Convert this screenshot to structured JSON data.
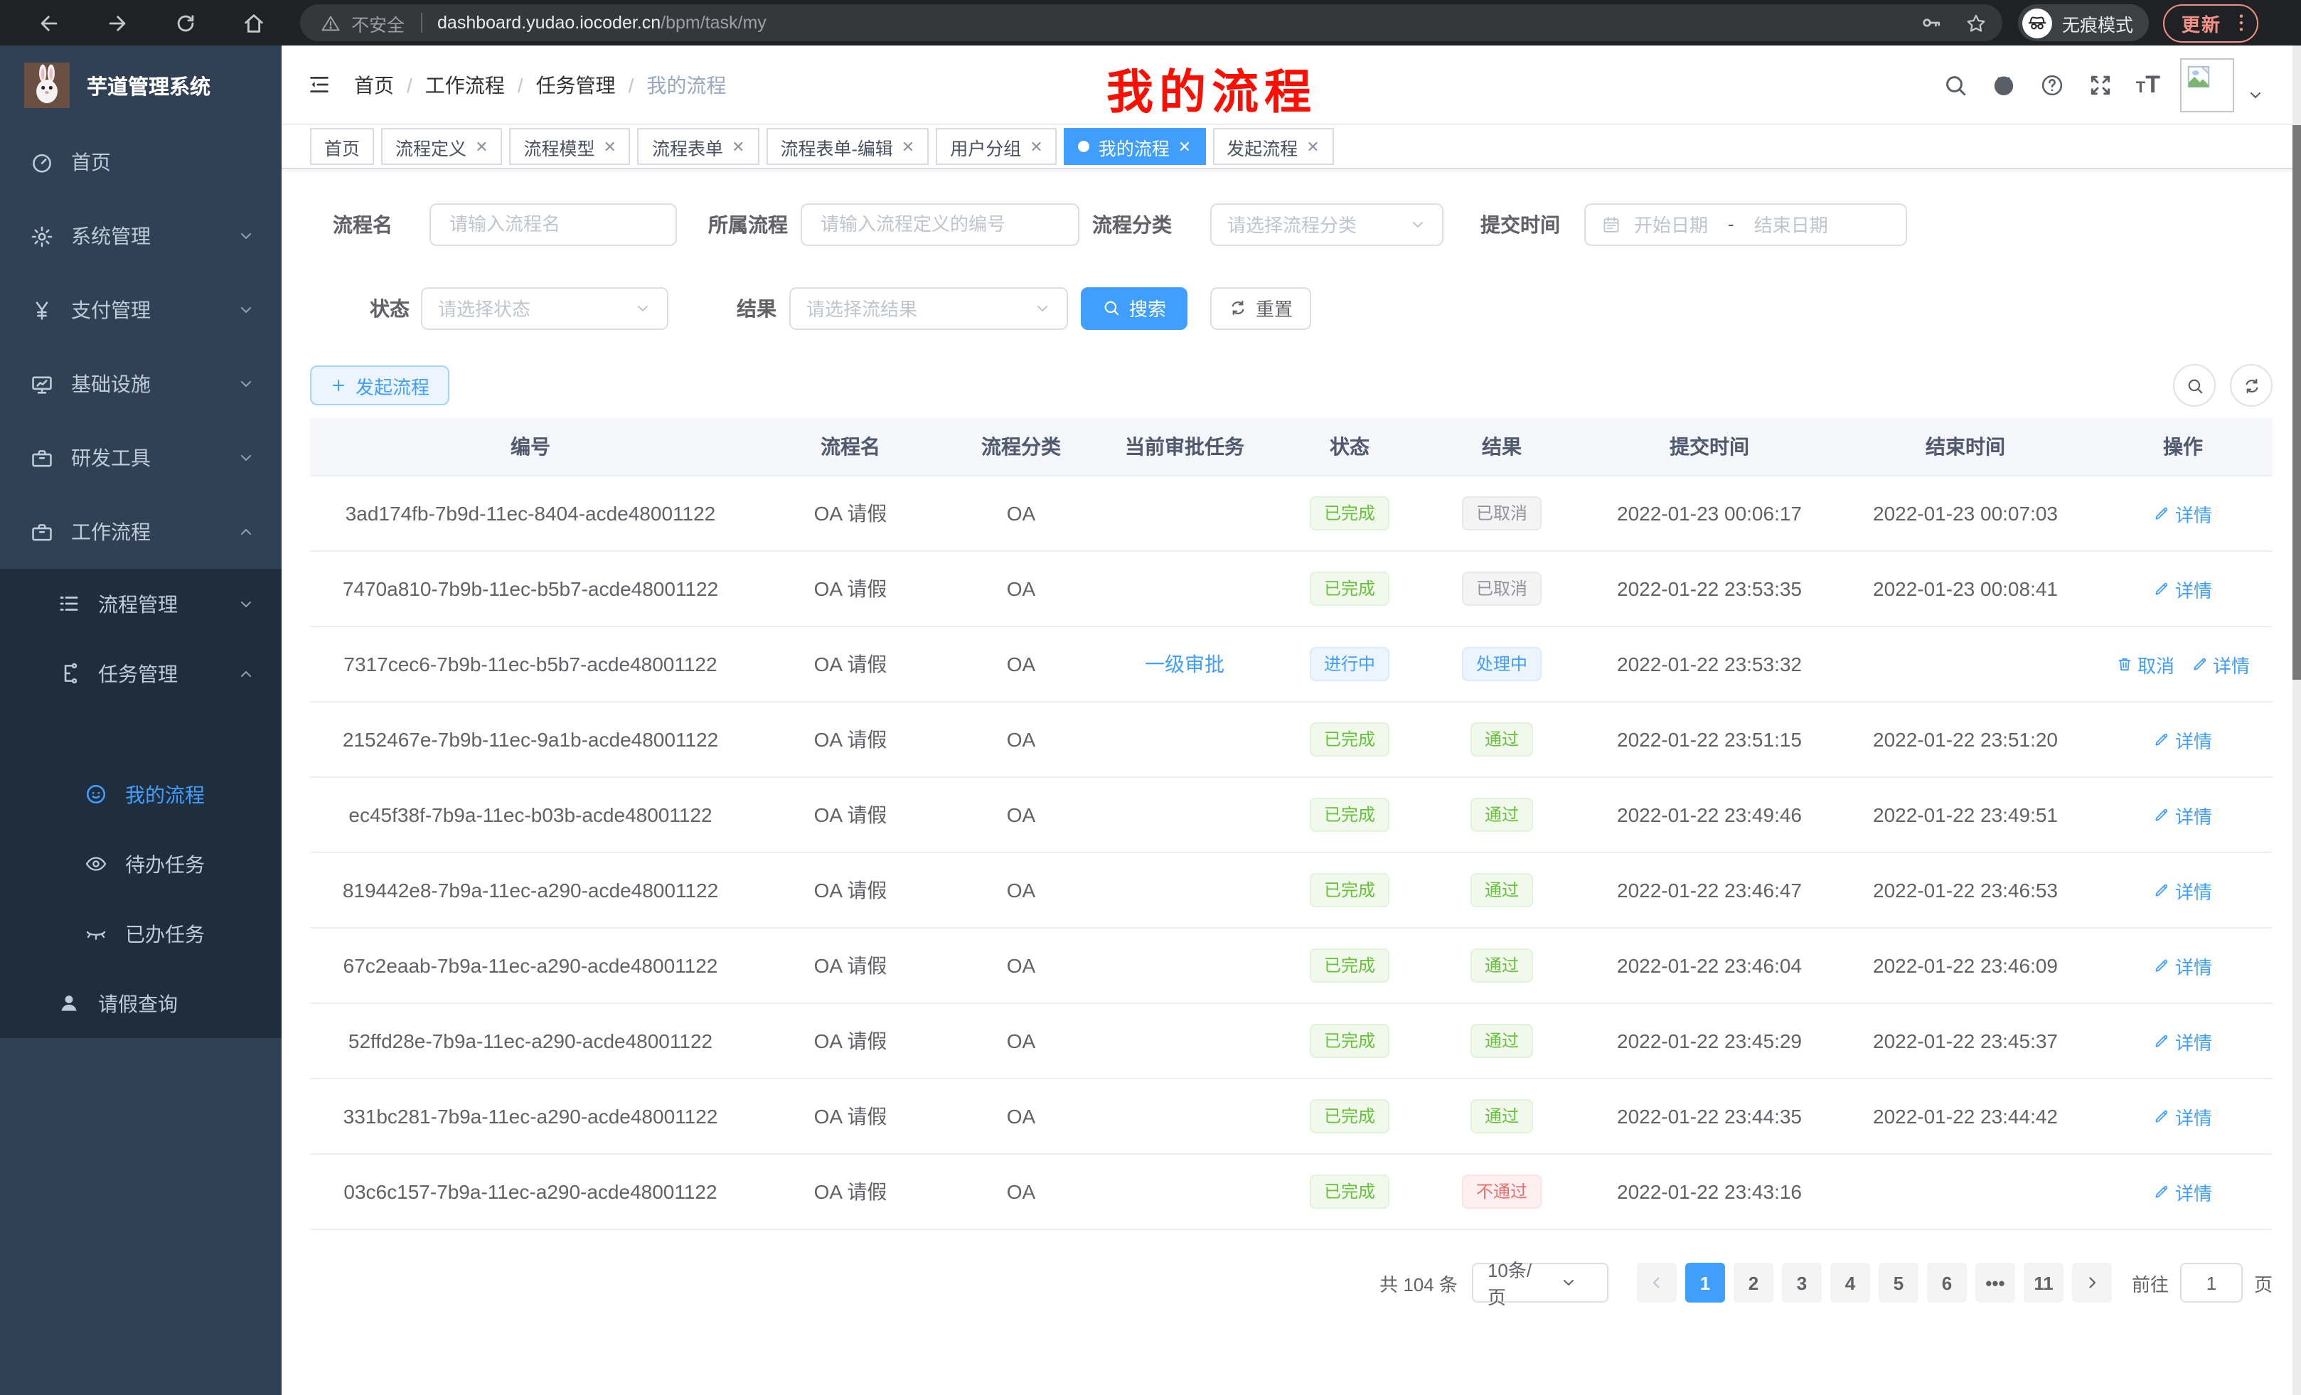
{
  "browser": {
    "security_label": "不安全",
    "url_host": "dashboard.yudao.iocoder.cn",
    "url_path": "/bpm/task/my",
    "incognito_label": "无痕模式",
    "update_label": "更新"
  },
  "colors": {
    "accent": "#409eff",
    "success": "#67c23a",
    "danger": "#f56c6c",
    "info": "#909399",
    "sidebar_bg": "#304156",
    "submenu_bg": "#1f2d3d",
    "overlay_red": "#fe0e00",
    "chrome_update_red": "#ee9086"
  },
  "sidebar": {
    "app_title": "芋道管理系统",
    "items": [
      {
        "name": "home",
        "label": "首页",
        "icon": "gauge",
        "level": 1,
        "sub": false
      },
      {
        "name": "system",
        "label": "系统管理",
        "icon": "gear",
        "level": 1,
        "arrow": "down",
        "sub": false
      },
      {
        "name": "payment",
        "label": "支付管理",
        "icon": "yen",
        "level": 1,
        "arrow": "down",
        "sub": false
      },
      {
        "name": "infrastructure",
        "label": "基础设施",
        "icon": "monitor",
        "level": 1,
        "arrow": "down",
        "sub": false
      },
      {
        "name": "devtools",
        "label": "研发工具",
        "icon": "briefcase",
        "level": 1,
        "arrow": "down",
        "sub": false
      },
      {
        "name": "workflow",
        "label": "工作流程",
        "icon": "briefcase",
        "level": 1,
        "arrow": "up",
        "sub": false
      },
      {
        "name": "process-mgmt",
        "label": "流程管理",
        "icon": "listmenu",
        "level": 2,
        "arrow": "down",
        "sub": true
      },
      {
        "name": "task-mgmt",
        "label": "任务管理",
        "icon": "tree",
        "level": 2,
        "arrow": "up",
        "sub": true
      },
      {
        "name": "my-process",
        "label": "我的流程",
        "icon": "face",
        "level": 3,
        "sub": true,
        "active": true,
        "gap": true
      },
      {
        "name": "todo-tasks",
        "label": "待办任务",
        "icon": "eye",
        "level": 3,
        "sub": true
      },
      {
        "name": "done-tasks",
        "label": "已办任务",
        "icon": "eyeoff",
        "level": 3,
        "sub": true
      },
      {
        "name": "leave-query",
        "label": "请假查询",
        "icon": "user",
        "level": 2,
        "sub": true
      }
    ]
  },
  "navbar": {
    "breadcrumb": [
      "首页",
      "工作流程",
      "任务管理",
      "我的流程"
    ]
  },
  "overlay_title": "我的流程",
  "tabs": [
    {
      "label": "首页",
      "closable": false,
      "active": false
    },
    {
      "label": "流程定义",
      "closable": true,
      "active": false
    },
    {
      "label": "流程模型",
      "closable": true,
      "active": false
    },
    {
      "label": "流程表单",
      "closable": true,
      "active": false
    },
    {
      "label": "流程表单-编辑",
      "closable": true,
      "active": false
    },
    {
      "label": "用户分组",
      "closable": true,
      "active": false
    },
    {
      "label": "我的流程",
      "closable": true,
      "active": true
    },
    {
      "label": "发起流程",
      "closable": true,
      "active": false
    }
  ],
  "filters": {
    "name": {
      "label": "流程名",
      "placeholder": "请输入流程名"
    },
    "process": {
      "label": "所属流程",
      "placeholder": "请输入流程定义的编号"
    },
    "category": {
      "label": "流程分类",
      "placeholder": "请选择流程分类"
    },
    "submit_time": {
      "label": "提交时间",
      "start": "开始日期",
      "separator": "-",
      "end": "结束日期"
    },
    "status": {
      "label": "状态",
      "placeholder": "请选择状态"
    },
    "result": {
      "label": "结果",
      "placeholder": "请选择流结果"
    },
    "search_label": "搜索",
    "reset_label": "重置"
  },
  "toolbar": {
    "start_label": "发起流程"
  },
  "table": {
    "columns": [
      "编号",
      "流程名",
      "流程分类",
      "当前审批任务",
      "状态",
      "结果",
      "提交时间",
      "结束时间",
      "操作"
    ],
    "rows": [
      {
        "id": "3ad174fb-7b9d-11ec-8404-acde48001122",
        "name": "OA 请假",
        "category": "OA",
        "task": "",
        "status": "已完成",
        "status_type": "success",
        "result": "已取消",
        "result_type": "info",
        "submit_time": "2022-01-23 00:06:17",
        "end_time": "2022-01-23 00:07:03",
        "actions": [
          {
            "label": "详情",
            "icon": "pencil"
          }
        ]
      },
      {
        "id": "7470a810-7b9b-11ec-b5b7-acde48001122",
        "name": "OA 请假",
        "category": "OA",
        "task": "",
        "status": "已完成",
        "status_type": "success",
        "result": "已取消",
        "result_type": "info",
        "submit_time": "2022-01-22 23:53:35",
        "end_time": "2022-01-23 00:08:41",
        "actions": [
          {
            "label": "详情",
            "icon": "pencil"
          }
        ]
      },
      {
        "id": "7317cec6-7b9b-11ec-b5b7-acde48001122",
        "name": "OA 请假",
        "category": "OA",
        "task": "一级审批",
        "status": "进行中",
        "status_type": "primary",
        "result": "处理中",
        "result_type": "primary",
        "submit_time": "2022-01-22 23:53:32",
        "end_time": "",
        "actions": [
          {
            "label": "取消",
            "icon": "trash"
          },
          {
            "label": "详情",
            "icon": "pencil"
          }
        ]
      },
      {
        "id": "2152467e-7b9b-11ec-9a1b-acde48001122",
        "name": "OA 请假",
        "category": "OA",
        "task": "",
        "status": "已完成",
        "status_type": "success",
        "result": "通过",
        "result_type": "success",
        "submit_time": "2022-01-22 23:51:15",
        "end_time": "2022-01-22 23:51:20",
        "actions": [
          {
            "label": "详情",
            "icon": "pencil"
          }
        ]
      },
      {
        "id": "ec45f38f-7b9a-11ec-b03b-acde48001122",
        "name": "OA 请假",
        "category": "OA",
        "task": "",
        "status": "已完成",
        "status_type": "success",
        "result": "通过",
        "result_type": "success",
        "submit_time": "2022-01-22 23:49:46",
        "end_time": "2022-01-22 23:49:51",
        "actions": [
          {
            "label": "详情",
            "icon": "pencil"
          }
        ]
      },
      {
        "id": "819442e8-7b9a-11ec-a290-acde48001122",
        "name": "OA 请假",
        "category": "OA",
        "task": "",
        "status": "已完成",
        "status_type": "success",
        "result": "通过",
        "result_type": "success",
        "submit_time": "2022-01-22 23:46:47",
        "end_time": "2022-01-22 23:46:53",
        "actions": [
          {
            "label": "详情",
            "icon": "pencil"
          }
        ]
      },
      {
        "id": "67c2eaab-7b9a-11ec-a290-acde48001122",
        "name": "OA 请假",
        "category": "OA",
        "task": "",
        "status": "已完成",
        "status_type": "success",
        "result": "通过",
        "result_type": "success",
        "submit_time": "2022-01-22 23:46:04",
        "end_time": "2022-01-22 23:46:09",
        "actions": [
          {
            "label": "详情",
            "icon": "pencil"
          }
        ]
      },
      {
        "id": "52ffd28e-7b9a-11ec-a290-acde48001122",
        "name": "OA 请假",
        "category": "OA",
        "task": "",
        "status": "已完成",
        "status_type": "success",
        "result": "通过",
        "result_type": "success",
        "submit_time": "2022-01-22 23:45:29",
        "end_time": "2022-01-22 23:45:37",
        "actions": [
          {
            "label": "详情",
            "icon": "pencil"
          }
        ]
      },
      {
        "id": "331bc281-7b9a-11ec-a290-acde48001122",
        "name": "OA 请假",
        "category": "OA",
        "task": "",
        "status": "已完成",
        "status_type": "success",
        "result": "通过",
        "result_type": "success",
        "submit_time": "2022-01-22 23:44:35",
        "end_time": "2022-01-22 23:44:42",
        "actions": [
          {
            "label": "详情",
            "icon": "pencil"
          }
        ]
      },
      {
        "id": "03c6c157-7b9a-11ec-a290-acde48001122",
        "name": "OA 请假",
        "category": "OA",
        "task": "",
        "status": "已完成",
        "status_type": "success",
        "result": "不通过",
        "result_type": "danger",
        "submit_time": "2022-01-22 23:43:16",
        "end_time": "",
        "actions": [
          {
            "label": "详情",
            "icon": "pencil"
          }
        ]
      }
    ]
  },
  "pagination": {
    "total_label": "共 104 条",
    "page_size": "10条/页",
    "pages": [
      "1",
      "2",
      "3",
      "4",
      "5",
      "6",
      "•••",
      "11"
    ],
    "active_page": "1",
    "goto_prefix": "前往",
    "goto_value": "1",
    "goto_suffix": "页"
  }
}
